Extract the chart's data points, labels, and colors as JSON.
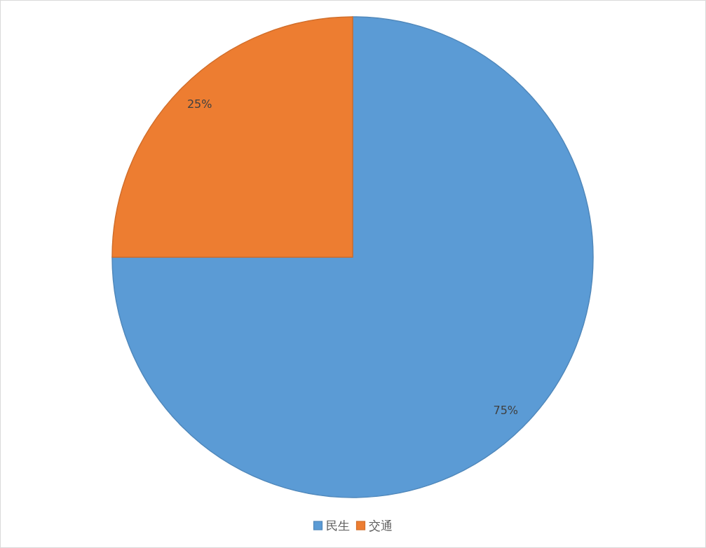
{
  "chart_data": {
    "type": "pie",
    "categories": [
      "民生",
      "交通"
    ],
    "values": [
      75,
      25
    ],
    "colors": [
      "#5b9bd5",
      "#ed7d31"
    ],
    "value_labels": [
      "75%",
      "25%"
    ],
    "legend": "bottom"
  }
}
